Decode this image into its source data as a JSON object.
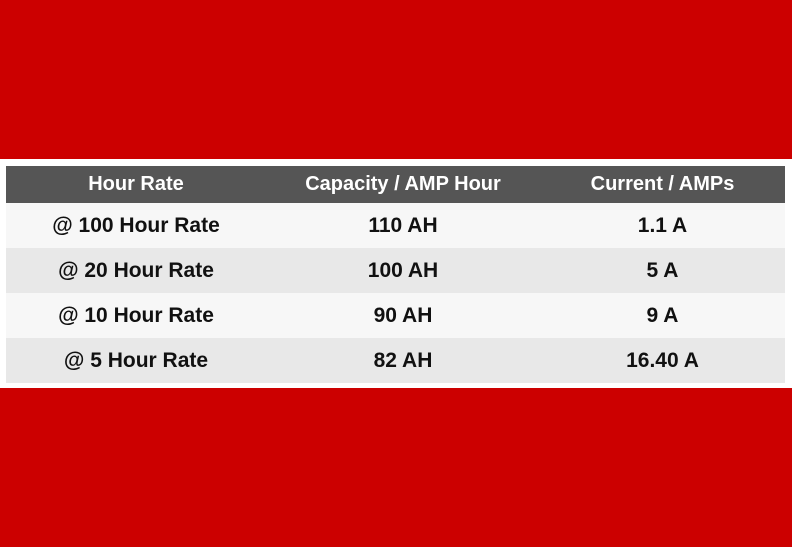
{
  "colors": {
    "band": "#cc0000",
    "header_bg": "#555555",
    "row_light": "#f7f7f7",
    "row_dark": "#e8e8e8"
  },
  "table": {
    "headers": [
      "Hour Rate",
      "Capacity / AMP Hour",
      "Current / AMPs"
    ],
    "rows": [
      [
        "@ 100 Hour Rate",
        "110 AH",
        "1.1 A"
      ],
      [
        "@ 20 Hour Rate",
        "100 AH",
        "5 A"
      ],
      [
        "@ 10 Hour Rate",
        "90 AH",
        "9 A"
      ],
      [
        "@ 5 Hour Rate",
        "82 AH",
        "16.40 A"
      ]
    ]
  }
}
